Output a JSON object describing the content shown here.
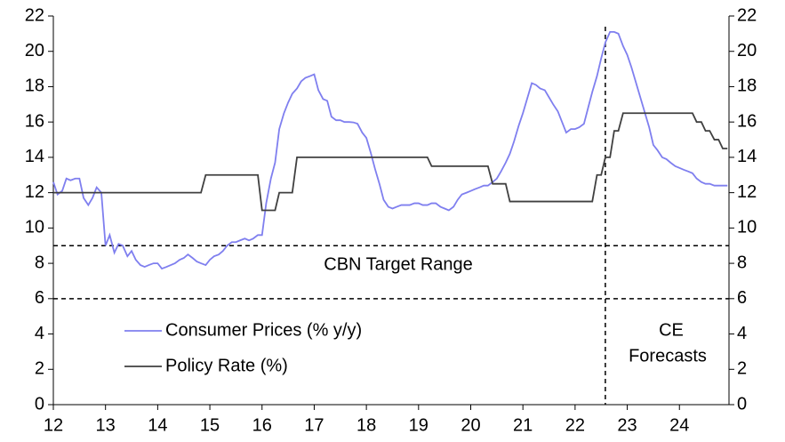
{
  "chart_data": {
    "type": "line",
    "xlim": [
      12,
      24.95
    ],
    "xticks": [
      12,
      13,
      14,
      15,
      16,
      17,
      18,
      19,
      20,
      21,
      22,
      23,
      24
    ],
    "ylim": [
      0,
      22
    ],
    "yticks": [
      0,
      2,
      4,
      6,
      8,
      10,
      12,
      14,
      16,
      18,
      20,
      22
    ],
    "y2lim": [
      0,
      22
    ],
    "y2ticks": [
      0,
      2,
      4,
      6,
      8,
      10,
      12,
      14,
      16,
      18,
      20,
      22
    ],
    "hlines": [
      9,
      6
    ],
    "vline": 22.58,
    "annotations": [
      "CBN Target Range",
      "CE",
      "Forecasts"
    ],
    "legend": "left",
    "series": [
      {
        "name": "Consumer Prices (% y/y)",
        "color": "#7f7fef",
        "x": [
          12.0,
          12.08,
          12.17,
          12.25,
          12.33,
          12.42,
          12.5,
          12.58,
          12.67,
          12.75,
          12.83,
          12.92,
          13.0,
          13.08,
          13.17,
          13.25,
          13.33,
          13.42,
          13.5,
          13.58,
          13.67,
          13.75,
          13.83,
          13.92,
          14.0,
          14.08,
          14.17,
          14.25,
          14.33,
          14.42,
          14.5,
          14.58,
          14.67,
          14.75,
          14.83,
          14.92,
          15.0,
          15.08,
          15.17,
          15.25,
          15.33,
          15.42,
          15.5,
          15.58,
          15.67,
          15.75,
          15.83,
          15.92,
          16.0,
          16.08,
          16.17,
          16.25,
          16.33,
          16.42,
          16.5,
          16.58,
          16.67,
          16.75,
          16.83,
          16.92,
          17.0,
          17.08,
          17.17,
          17.25,
          17.33,
          17.42,
          17.5,
          17.58,
          17.67,
          17.75,
          17.83,
          17.92,
          18.0,
          18.08,
          18.17,
          18.25,
          18.33,
          18.42,
          18.5,
          18.58,
          18.67,
          18.75,
          18.83,
          18.92,
          19.0,
          19.08,
          19.17,
          19.25,
          19.33,
          19.42,
          19.5,
          19.58,
          19.67,
          19.75,
          19.83,
          19.92,
          20.0,
          20.08,
          20.17,
          20.25,
          20.33,
          20.42,
          20.5,
          20.58,
          20.67,
          20.75,
          20.83,
          20.92,
          21.0,
          21.08,
          21.17,
          21.25,
          21.33,
          21.42,
          21.5,
          21.58,
          21.67,
          21.75,
          21.83,
          21.92,
          22.0,
          22.08,
          22.17,
          22.25,
          22.33,
          22.42,
          22.5,
          22.58,
          22.67,
          22.75,
          22.83,
          22.92,
          23.0,
          23.08,
          23.17,
          23.25,
          23.33,
          23.42,
          23.5,
          23.58,
          23.67,
          23.75,
          23.83,
          23.92,
          24.0,
          24.08,
          24.17,
          24.25,
          24.33,
          24.42,
          24.5,
          24.58,
          24.67,
          24.75,
          24.92
        ],
        "values": [
          12.6,
          11.9,
          12.1,
          12.8,
          12.7,
          12.8,
          12.8,
          11.7,
          11.3,
          11.7,
          12.3,
          12.0,
          9.0,
          9.6,
          8.6,
          9.1,
          9.0,
          8.4,
          8.7,
          8.2,
          7.9,
          7.8,
          7.9,
          8.0,
          8.0,
          7.7,
          7.8,
          7.9,
          8.0,
          8.2,
          8.3,
          8.5,
          8.3,
          8.1,
          8.0,
          7.9,
          8.2,
          8.4,
          8.5,
          8.7,
          9.0,
          9.2,
          9.2,
          9.3,
          9.4,
          9.3,
          9.4,
          9.6,
          9.6,
          11.4,
          12.8,
          13.7,
          15.6,
          16.5,
          17.1,
          17.6,
          17.9,
          18.3,
          18.5,
          18.6,
          18.7,
          17.8,
          17.3,
          17.2,
          16.3,
          16.1,
          16.1,
          16.0,
          16.0,
          15.98,
          15.9,
          15.4,
          15.1,
          14.3,
          13.3,
          12.5,
          11.6,
          11.2,
          11.1,
          11.2,
          11.3,
          11.3,
          11.3,
          11.4,
          11.4,
          11.3,
          11.3,
          11.4,
          11.4,
          11.2,
          11.1,
          11.0,
          11.2,
          11.6,
          11.9,
          12.0,
          12.1,
          12.2,
          12.3,
          12.4,
          12.4,
          12.6,
          12.8,
          13.2,
          13.7,
          14.2,
          14.9,
          15.8,
          16.5,
          17.3,
          18.2,
          18.1,
          17.9,
          17.8,
          17.4,
          17.0,
          16.6,
          16.0,
          15.4,
          15.6,
          15.6,
          15.7,
          15.9,
          16.8,
          17.7,
          18.6,
          19.6,
          20.5,
          21.1,
          21.1,
          21.0,
          20.3,
          19.8,
          19.1,
          18.2,
          17.4,
          16.6,
          15.7,
          14.7,
          14.4,
          14.0,
          13.9,
          13.7,
          13.5,
          13.4,
          13.3,
          13.2,
          13.1,
          12.8,
          12.6,
          12.5,
          12.5,
          12.4,
          12.4,
          12.4
        ]
      },
      {
        "name": "Policy Rate (%)",
        "color": "#404040",
        "x": [
          12,
          14.83,
          14.92,
          15.92,
          16.0,
          16.25,
          16.33,
          16.58,
          16.67,
          19.17,
          19.25,
          20.33,
          20.42,
          20.67,
          20.75,
          22.33,
          22.42,
          22.5,
          22.58,
          22.67,
          22.75,
          22.83,
          22.92,
          24.25,
          24.33,
          24.42,
          24.5,
          24.58,
          24.67,
          24.75,
          24.83,
          24.92
        ],
        "values": [
          12,
          12,
          13,
          13,
          11,
          11,
          12,
          12,
          14,
          14,
          13.5,
          13.5,
          12.5,
          12.5,
          11.5,
          11.5,
          13,
          13,
          14,
          14,
          15.5,
          15.5,
          16.5,
          16.5,
          16,
          16,
          15.5,
          15.5,
          15,
          15,
          14.5,
          14.5
        ]
      }
    ]
  }
}
